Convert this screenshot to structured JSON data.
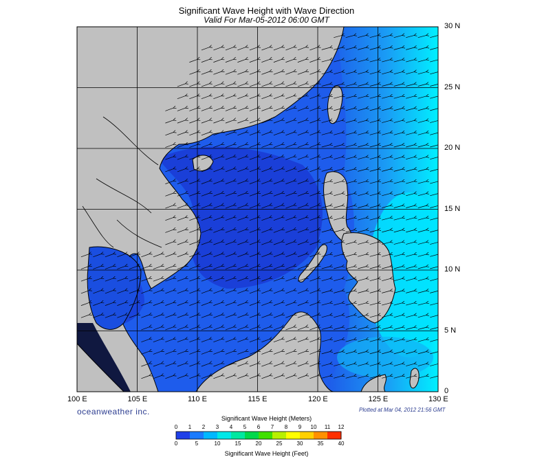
{
  "title": "Significant Wave Height with Wave Direction",
  "subtitle": "Valid For Mar-05-2012 06:00 GMT",
  "brand": "oceanweather inc.",
  "plotted": "Plotted at Mar 04, 2012 21:56 GMT",
  "lat_labels": [
    "30 N",
    "25 N",
    "20 N",
    "15 N",
    "10 N",
    "5 N",
    "0"
  ],
  "lon_labels": [
    "100 E",
    "105 E",
    "110 E",
    "115 E",
    "120 E",
    "125 E",
    "130 E"
  ],
  "colorbar": {
    "title_meters": "Significant Wave Height (Meters)",
    "title_feet": "Significant Wave Height (Feet)",
    "meters_ticks": [
      "0",
      "1",
      "2",
      "3",
      "4",
      "5",
      "6",
      "7",
      "8",
      "9",
      "10",
      "11",
      "12"
    ],
    "feet_ticks": [
      "0",
      "5",
      "10",
      "15",
      "20",
      "25",
      "30",
      "35",
      "40"
    ],
    "colors": [
      "#1f3fe8",
      "#1a7bff",
      "#00b8ff",
      "#00e8e8",
      "#00e8a0",
      "#00d84a",
      "#40e000",
      "#b8f000",
      "#ffff00",
      "#ffd000",
      "#ff9000",
      "#ff3000"
    ]
  },
  "colors": {
    "land": "#c0c0c0",
    "ocean_deep": "#1a3fd8",
    "ocean_mid": "#1e63ee",
    "ocean_light": "#18b8f5",
    "ocean_cyan": "#00eaff",
    "land_dark": "#101840"
  }
}
